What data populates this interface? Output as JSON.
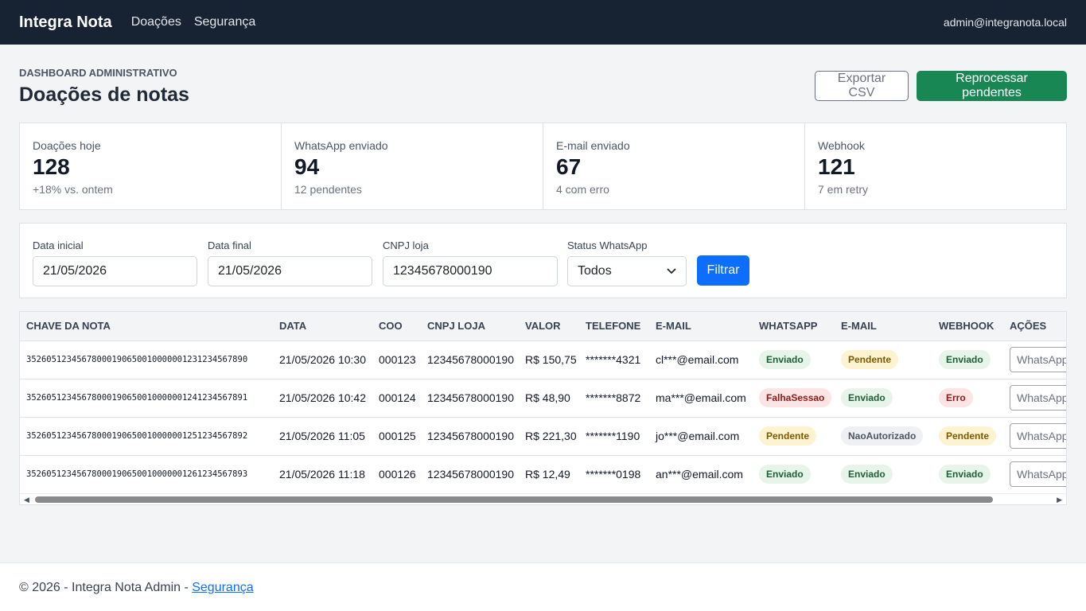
{
  "nav": {
    "brand": "Integra Nota",
    "links": [
      "Doações",
      "Segurança"
    ],
    "user": "admin@integranota.local"
  },
  "header": {
    "eyebrow": "DASHBOARD ADMINISTRATIVO",
    "title": "Doações de notas",
    "export_label": "Exportar CSV",
    "reprocess_label": "Reprocessar pendentes"
  },
  "stats": [
    {
      "label": "Doações hoje",
      "value": "128",
      "sub": "+18% vs. ontem"
    },
    {
      "label": "WhatsApp enviado",
      "value": "94",
      "sub": "12 pendentes"
    },
    {
      "label": "E-mail enviado",
      "value": "67",
      "sub": "4 com erro"
    },
    {
      "label": "Webhook",
      "value": "121",
      "sub": "7 em retry"
    }
  ],
  "filters": {
    "start_label": "Data inicial",
    "start_value": "21/05/2026",
    "end_label": "Data final",
    "end_value": "21/05/2026",
    "cnpj_label": "CNPJ loja",
    "cnpj_value": "12345678000190",
    "status_label": "Status WhatsApp",
    "status_value": "Todos",
    "submit_label": "Filtrar"
  },
  "table": {
    "headers": [
      "CHAVE DA NOTA",
      "DATA",
      "COO",
      "CNPJ LOJA",
      "VALOR",
      "TELEFONE",
      "E-MAIL",
      "WHATSAPP",
      "E-MAIL",
      "WEBHOOK",
      "AÇÕES"
    ],
    "rows": [
      {
        "chave": "35260512345678000190650010000001231234567890",
        "data": "21/05/2026 10:30",
        "coo": "000123",
        "cnpj": "12345678000190",
        "valor": "R$ 150,75",
        "telefone": "*******4321",
        "email": "cl***@email.com",
        "whatsapp": "Enviado",
        "email_status": "Pendente",
        "webhook": "Enviado",
        "acao": "WhatsApp"
      },
      {
        "chave": "35260512345678000190650010000001241234567891",
        "data": "21/05/2026 10:42",
        "coo": "000124",
        "cnpj": "12345678000190",
        "valor": "R$ 48,90",
        "telefone": "*******8872",
        "email": "ma***@email.com",
        "whatsapp": "FalhaSessao",
        "email_status": "Enviado",
        "webhook": "Erro",
        "acao": "WhatsApp"
      },
      {
        "chave": "35260512345678000190650010000001251234567892",
        "data": "21/05/2026 11:05",
        "coo": "000125",
        "cnpj": "12345678000190",
        "valor": "R$ 221,30",
        "telefone": "*******1190",
        "email": "jo***@email.com",
        "whatsapp": "Pendente",
        "email_status": "NaoAutorizado",
        "webhook": "Pendente",
        "acao": "WhatsApp"
      },
      {
        "chave": "35260512345678000190650010000001261234567893",
        "data": "21/05/2026 11:18",
        "coo": "000126",
        "cnpj": "12345678000190",
        "valor": "R$ 12,49",
        "telefone": "*******0198",
        "email": "an***@email.com",
        "whatsapp": "Enviado",
        "email_status": "Enviado",
        "webhook": "Enviado",
        "acao": "WhatsApp"
      }
    ]
  },
  "footer": {
    "text": "© 2026 - Integra Nota Admin - ",
    "link": "Segurança"
  },
  "colors": {
    "navbar": "#172232",
    "success": "#198754",
    "primary": "#0d6efd"
  }
}
